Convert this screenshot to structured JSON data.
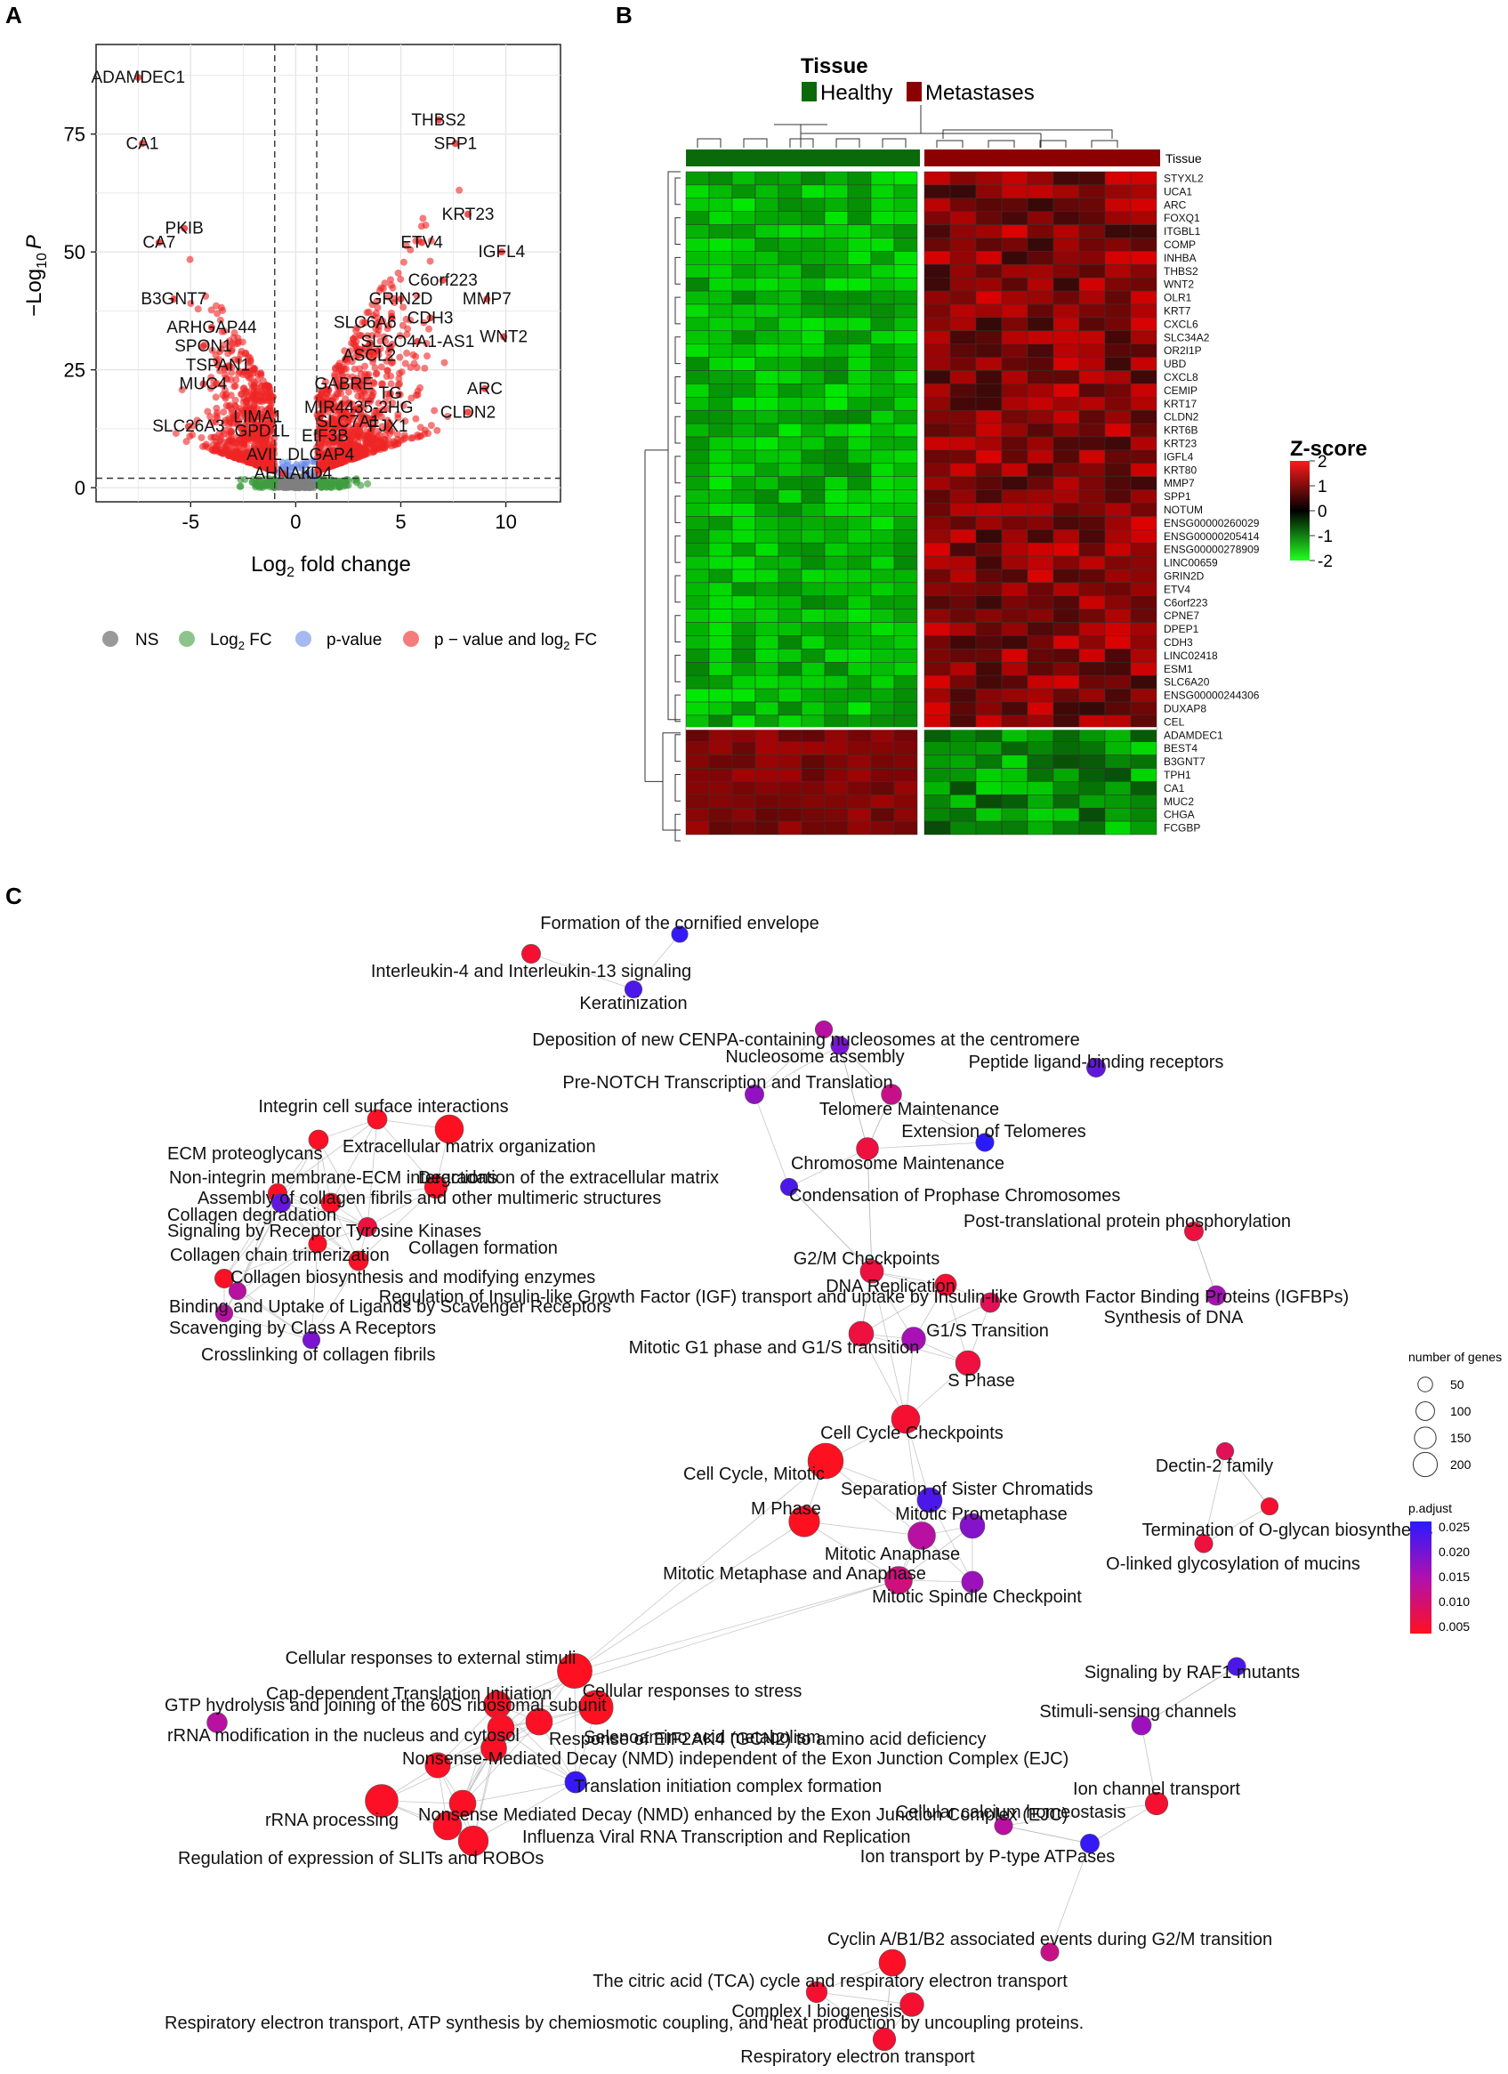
{
  "panels": {
    "a": "A",
    "b": "B",
    "c": "C"
  },
  "chart_data": [
    {
      "type": "scatter",
      "title": "",
      "xlabel_main": "Log",
      "xlabel_sub": "2",
      "xlabel_rest": " fold change",
      "ylabel_prefix": "−Log",
      "ylabel_sub": "10",
      "ylabel_var": "P",
      "xlim": [
        -9.5,
        12.6
      ],
      "ylim": [
        -3,
        94
      ],
      "xticks": [
        -5,
        0,
        5,
        10
      ],
      "yticks": [
        0,
        25,
        50,
        75
      ],
      "fc_cutoffs": [
        -1,
        1
      ],
      "p_cutoff": 2,
      "colors": {
        "ns": "#808080",
        "fc": "#3f9d3f",
        "p": "#6b8be8",
        "both": "#ee2424"
      },
      "legend": {
        "items": [
          {
            "key": "ns",
            "label": "NS"
          },
          {
            "key": "fc",
            "label_main": "Log",
            "label_sub": "2",
            "label_rest": " FC"
          },
          {
            "key": "p",
            "label": "p-value"
          },
          {
            "key": "both",
            "label": "p − value and log",
            "label_sub": "2",
            "label_rest": " FC"
          }
        ]
      },
      "labeled_points": [
        {
          "name": "ADAMDEC1",
          "x": -7.5,
          "y": 87
        },
        {
          "name": "CA1",
          "x": -7.3,
          "y": 73
        },
        {
          "name": "THBS2",
          "x": 6.8,
          "y": 78
        },
        {
          "name": "SPP1",
          "x": 7.6,
          "y": 73
        },
        {
          "name": "PKIB",
          "x": -5.3,
          "y": 55
        },
        {
          "name": "CA7",
          "x": -6.5,
          "y": 52
        },
        {
          "name": "KRT23",
          "x": 8.2,
          "y": 58
        },
        {
          "name": "ETV4",
          "x": 6.0,
          "y": 52
        },
        {
          "name": "IGFL4",
          "x": 9.8,
          "y": 50
        },
        {
          "name": "B3GNT7",
          "x": -5.8,
          "y": 40
        },
        {
          "name": "C6orf223",
          "x": 7.0,
          "y": 44
        },
        {
          "name": "MMP7",
          "x": 9.1,
          "y": 40
        },
        {
          "name": "GRIN2D",
          "x": 5.0,
          "y": 40
        },
        {
          "name": "CDH3",
          "x": 6.4,
          "y": 36
        },
        {
          "name": "ARHGAP44",
          "x": -4.0,
          "y": 34
        },
        {
          "name": "SLC6A6",
          "x": 3.3,
          "y": 35
        },
        {
          "name": "WNT2",
          "x": 9.9,
          "y": 32
        },
        {
          "name": "SPON1",
          "x": -4.4,
          "y": 30
        },
        {
          "name": "SLCO4A1-AS1",
          "x": 5.8,
          "y": 31
        },
        {
          "name": "ASCL2",
          "x": 3.5,
          "y": 28
        },
        {
          "name": "TSPAN1",
          "x": -3.7,
          "y": 26
        },
        {
          "name": "MUC4",
          "x": -4.4,
          "y": 22
        },
        {
          "name": "GABRE",
          "x": 2.3,
          "y": 22
        },
        {
          "name": "TG",
          "x": 4.5,
          "y": 20
        },
        {
          "name": "ARC",
          "x": 9.0,
          "y": 21
        },
        {
          "name": "CLDN2",
          "x": 8.2,
          "y": 16
        },
        {
          "name": "MIR4435-2HG",
          "x": 3.0,
          "y": 17
        },
        {
          "name": "LIMA1",
          "x": -1.8,
          "y": 15
        },
        {
          "name": "SLC26A3",
          "x": -5.1,
          "y": 13
        },
        {
          "name": "GPD1L",
          "x": -1.6,
          "y": 12
        },
        {
          "name": "SLC7A1",
          "x": 2.5,
          "y": 14
        },
        {
          "name": "FJX1",
          "x": 4.4,
          "y": 13
        },
        {
          "name": "EIF3B",
          "x": 1.4,
          "y": 11
        },
        {
          "name": "AVIL",
          "x": -1.5,
          "y": 7
        },
        {
          "name": "DLGAP4",
          "x": 1.2,
          "y": 7
        },
        {
          "name": "AHNAK",
          "x": -0.6,
          "y": 3
        },
        {
          "name": "ID4",
          "x": 1.1,
          "y": 3
        }
      ]
    },
    {
      "type": "heatmap",
      "legend_title": "Tissue",
      "groups": [
        {
          "name": "Healthy",
          "color": "#0a6a0a",
          "samples": 10
        },
        {
          "name": "Metastases",
          "color": "#8b0000",
          "samples": 9
        }
      ],
      "annotation_label": "Tissue",
      "zscore_title": "Z-score",
      "zscore_ticks": [
        2,
        1,
        0,
        -1,
        -2
      ],
      "genes_up": [
        "STYXL2",
        "UCA1",
        "ARC",
        "FOXQ1",
        "ITGBL1",
        "COMP",
        "INHBA",
        "THBS2",
        "WNT2",
        "OLR1",
        "KRT7",
        "CXCL6",
        "SLC34A2",
        "OR2I1P",
        "UBD",
        "CXCL8",
        "CEMIP",
        "KRT17",
        "CLDN2",
        "KRT6B",
        "KRT23",
        "IGFL4",
        "KRT80",
        "MMP7",
        "SPP1",
        "NOTUM",
        "ENSG00000260029",
        "ENSG00000205414",
        "ENSG00000278909",
        "LINC00659",
        "GRIN2D",
        "ETV4",
        "C6orf223",
        "CPNE7",
        "DPEP1",
        "CDH3",
        "LINC02418",
        "ESM1",
        "SLC6A20",
        "ENSG00000244306",
        "DUXAP8",
        "CEL"
      ],
      "genes_down": [
        "ADAMDEC1",
        "BEST4",
        "B3GNT7",
        "TPH1",
        "CA1",
        "MUC2",
        "CHGA",
        "FCGBP"
      ]
    },
    {
      "type": "network",
      "size_legend": {
        "title": "number of genes",
        "values": [
          50,
          100,
          150,
          200
        ]
      },
      "color_legend": {
        "title": "p.adjust",
        "values": [
          0.025,
          0.02,
          0.015,
          0.01,
          0.005
        ],
        "labels": [
          "0.025",
          "0.020",
          "0.015",
          "0.010",
          "0.005"
        ]
      },
      "nodes": [
        {
          "label": "Formation of the cornified envelope",
          "genes": 25,
          "p": 0.024
        },
        {
          "label": "Interleukin-4 and Interleukin-13 signaling",
          "genes": 40,
          "p": 0.003
        },
        {
          "label": "Keratinization",
          "genes": 30,
          "p": 0.022
        },
        {
          "label": "Deposition of new CENPA-containing nucleosomes at the centromere",
          "genes": 30,
          "p": 0.012
        },
        {
          "label": "Nucleosome assembly",
          "genes": 35,
          "p": 0.018
        },
        {
          "label": "Peptide ligand-binding receptors",
          "genes": 40,
          "p": 0.02
        },
        {
          "label": "Pre-NOTCH Transcription and Translation",
          "genes": 40,
          "p": 0.016
        },
        {
          "label": "Telomere Maintenance",
          "genes": 50,
          "p": 0.01
        },
        {
          "label": "Extension of Telomeres",
          "genes": 35,
          "p": 0.025
        },
        {
          "label": "Integrin cell surface interactions",
          "genes": 45,
          "p": 0.002
        },
        {
          "label": "ECM proteoglycans",
          "genes": 45,
          "p": 0.002
        },
        {
          "label": "Extracellular matrix organization",
          "genes": 130,
          "p": 0.001
        },
        {
          "label": "Chromosome Maintenance",
          "genes": 65,
          "p": 0.004
        },
        {
          "label": "Non-integrin membrane-ECM interactions",
          "genes": 40,
          "p": 0.002
        },
        {
          "label": "Degradation of the extracellular matrix",
          "genes": 70,
          "p": 0.002
        },
        {
          "label": "Collagen degradation",
          "genes": 40,
          "p": 0.02
        },
        {
          "label": "Assembly of collagen fibrils and other multimeric structures",
          "genes": 45,
          "p": 0.002
        },
        {
          "label": "Condensation of Prophase Chromosomes",
          "genes": 30,
          "p": 0.022
        },
        {
          "label": "Signaling by Receptor Tyrosine Kinases",
          "genes": 40,
          "p": 0.004
        },
        {
          "label": "Post-translational protein phosphorylation",
          "genes": 40,
          "p": 0.004
        },
        {
          "label": "Collagen chain trimerization",
          "genes": 35,
          "p": 0.002
        },
        {
          "label": "Collagen formation",
          "genes": 45,
          "p": 0.002
        },
        {
          "label": "G2/M Checkpoints",
          "genes": 75,
          "p": 0.004
        },
        {
          "label": "DNA Replication",
          "genes": 60,
          "p": 0.003
        },
        {
          "label": "Collagen biosynthesis and modifying enzymes",
          "genes": 40,
          "p": 0.002
        },
        {
          "label": "Binding and Uptake of Ligands by Scavenger Receptors",
          "genes": 30,
          "p": 0.012
        },
        {
          "label": "Regulation of Insulin-like Growth Factor (IGF) transport and uptake by Insulin-like Growth Factor Binding Proteins (IGFBPs)",
          "genes": 45,
          "p": 0.006
        },
        {
          "label": "Synthesis of DNA",
          "genes": 45,
          "p": 0.014
        },
        {
          "label": "Scavenging by Class A Receptors",
          "genes": 30,
          "p": 0.012
        },
        {
          "label": "G1/S Transition",
          "genes": 80,
          "p": 0.014
        },
        {
          "label": "Crosslinking of collagen fibrils",
          "genes": 30,
          "p": 0.018
        },
        {
          "label": "Mitotic G1 phase and G1/S transition",
          "genes": 90,
          "p": 0.004
        },
        {
          "label": "S Phase",
          "genes": 90,
          "p": 0.004
        },
        {
          "label": "Cell Cycle Checkpoints",
          "genes": 130,
          "p": 0.003
        },
        {
          "label": "Dectin-2 family",
          "genes": 30,
          "p": 0.006
        },
        {
          "label": "Cell Cycle, Mitotic",
          "genes": 230,
          "p": 0.001
        },
        {
          "label": "Separation of Sister Chromatids",
          "genes": 90,
          "p": 0.022
        },
        {
          "label": "M Phase",
          "genes": 160,
          "p": 0.001
        },
        {
          "label": "Mitotic Prometaphase",
          "genes": 90,
          "p": 0.017
        },
        {
          "label": "Termination of O-glycan biosynthesis",
          "genes": 30,
          "p": 0.003
        },
        {
          "label": "Mitotic Anaphase",
          "genes": 120,
          "p": 0.012
        },
        {
          "label": "O-linked glycosylation of mucins",
          "genes": 35,
          "p": 0.004
        },
        {
          "label": "Mitotic Metaphase and Anaphase",
          "genes": 120,
          "p": 0.009
        },
        {
          "label": "Mitotic Spindle Checkpoint",
          "genes": 60,
          "p": 0.015
        },
        {
          "label": "Cellular responses to external stimuli",
          "genes": 220,
          "p": 0.001
        },
        {
          "label": "Signaling by RAF1 mutants",
          "genes": 35,
          "p": 0.022
        },
        {
          "label": "Cap-dependent Translation Initiation",
          "genes": 120,
          "p": 0.002
        },
        {
          "label": "Cellular responses to stress",
          "genes": 210,
          "p": 0.001
        },
        {
          "label": "GTP hydrolysis and joining of the 60S ribosomal subunit",
          "genes": 110,
          "p": 0.002
        },
        {
          "label": "Selenoamino acid metabolism",
          "genes": 110,
          "p": 0.002
        },
        {
          "label": "rRNA modification in the nucleus and cytosol",
          "genes": 50,
          "p": 0.012
        },
        {
          "label": "Stimuli-sensing channels",
          "genes": 45,
          "p": 0.015
        },
        {
          "label": "Response of EIF2AK4 (GCN2) to amino acid deficiency",
          "genes": 100,
          "p": 0.002
        },
        {
          "label": "Nonsense-Mediated Decay (NMD) independent of the Exon Junction Complex (EJC)",
          "genes": 95,
          "p": 0.002
        },
        {
          "label": "Translation initiation complex formation",
          "genes": 60,
          "p": 0.024
        },
        {
          "label": "Ion channel transport",
          "genes": 70,
          "p": 0.003
        },
        {
          "label": "rRNA processing",
          "genes": 190,
          "p": 0.002
        },
        {
          "label": "Nonsense Mediated Decay (NMD) enhanced by the Exon Junction Complex (EJC)",
          "genes": 110,
          "p": 0.002
        },
        {
          "label": "Cellular calcium homeostasis",
          "genes": 35,
          "p": 0.012
        },
        {
          "label": "Influenza Viral RNA Transcription and Replication",
          "genes": 130,
          "p": 0.002
        },
        {
          "label": "Ion transport by P-type ATPases",
          "genes": 40,
          "p": 0.024
        },
        {
          "label": "Regulation of expression of SLITs and ROBOs",
          "genes": 150,
          "p": 0.002
        },
        {
          "label": "Cyclin A/B1/B2 associated events during G2/M transition",
          "genes": 35,
          "p": 0.01
        },
        {
          "label": "The citric acid (TCA) cycle and respiratory electron transport",
          "genes": 110,
          "p": 0.002
        },
        {
          "label": "Complex I biogenesis",
          "genes": 55,
          "p": 0.003
        },
        {
          "label": "Respiratory electron transport, ATP synthesis by chemiosmotic coupling, and heat production by uncoupling proteins.",
          "genes": 80,
          "p": 0.003
        },
        {
          "label": "Respiratory electron transport",
          "genes": 70,
          "p": 0.003
        }
      ]
    }
  ]
}
